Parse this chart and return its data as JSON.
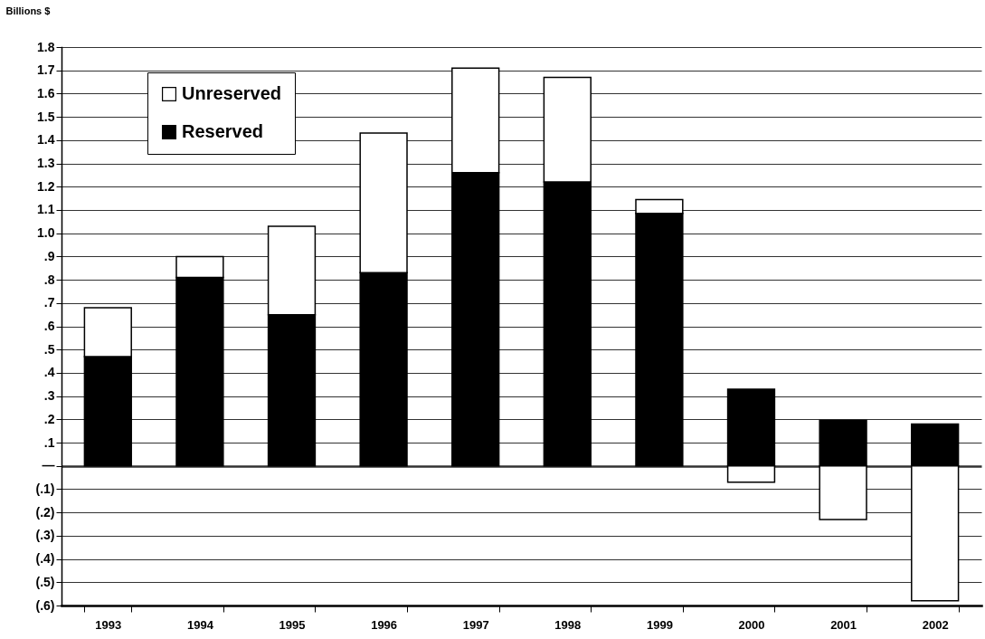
{
  "chart_data": {
    "type": "bar",
    "stacked": true,
    "ylabel": "Billions $",
    "categories": [
      "1993",
      "1994",
      "1995",
      "1996",
      "1997",
      "1998",
      "1999",
      "2000",
      "2001",
      "2002"
    ],
    "series": [
      {
        "name": "Reserved",
        "color": "#000000",
        "values": [
          0.47,
          0.81,
          0.65,
          0.83,
          1.26,
          1.22,
          1.085,
          0.33,
          0.195,
          0.18
        ]
      },
      {
        "name": "Unreserved",
        "color": "#ffffff",
        "values": [
          0.21,
          0.09,
          0.38,
          0.6,
          0.45,
          0.45,
          0.06,
          -0.07,
          -0.23,
          -0.58
        ]
      }
    ],
    "ylim": [
      -0.6,
      1.8
    ],
    "yticks": [
      {
        "value": -0.6,
        "label": "(.6)"
      },
      {
        "value": -0.5,
        "label": "(.5)"
      },
      {
        "value": -0.4,
        "label": "(.4)"
      },
      {
        "value": -0.3,
        "label": "(.3)"
      },
      {
        "value": -0.2,
        "label": "(.2)"
      },
      {
        "value": -0.1,
        "label": "(.1)"
      },
      {
        "value": 0,
        "label": "—"
      },
      {
        "value": 0.1,
        "label": ".1"
      },
      {
        "value": 0.2,
        "label": ".2"
      },
      {
        "value": 0.3,
        "label": ".3"
      },
      {
        "value": 0.4,
        "label": ".4"
      },
      {
        "value": 0.5,
        "label": ".5"
      },
      {
        "value": 0.6,
        "label": ".6"
      },
      {
        "value": 0.7,
        "label": ".7"
      },
      {
        "value": 0.8,
        "label": ".8"
      },
      {
        "value": 0.9,
        "label": ".9"
      },
      {
        "value": 1.0,
        "label": "1.0"
      },
      1.1,
      1.2,
      1.3,
      1.4,
      1.5,
      1.6,
      1.7,
      1.8
    ],
    "grid": "y",
    "legend": "top left"
  }
}
